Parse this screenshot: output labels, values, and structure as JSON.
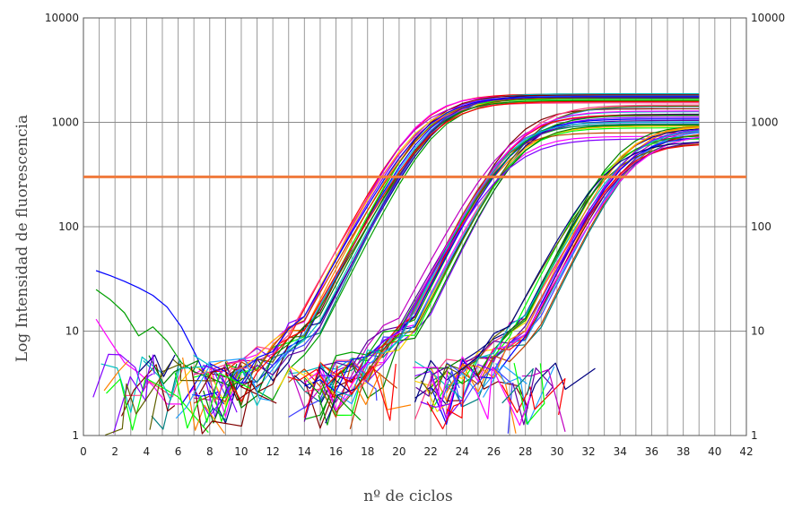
{
  "chart_data": {
    "type": "line",
    "title": "",
    "xlabel": "nº de ciclos",
    "ylabel": "Log Intensidad de fluorescencia",
    "yscale": "log",
    "xlim": [
      0,
      42
    ],
    "ylim": [
      1,
      10000
    ],
    "x_ticks": [
      "0",
      "2",
      "4",
      "6",
      "8",
      "10",
      "12",
      "14",
      "16",
      "18",
      "20",
      "22",
      "24",
      "26",
      "28",
      "30",
      "32",
      "34",
      "36",
      "38",
      "40",
      "42"
    ],
    "y_ticks": [
      "1",
      "10",
      "100",
      "1000",
      "10000"
    ],
    "y_ticks_right": [
      "1",
      "10",
      "100",
      "1000",
      "10000"
    ],
    "grid": true,
    "threshold": 300,
    "threshold_color": "#f07a3c",
    "cycles": [
      1,
      2,
      3,
      4,
      5,
      6,
      7,
      8,
      9,
      10,
      11,
      12,
      13,
      14,
      15,
      16,
      17,
      18,
      19,
      20,
      21,
      22,
      23,
      24,
      25,
      26,
      27,
      28,
      29,
      30,
      31,
      32,
      33,
      34,
      35,
      36,
      37,
      38,
      39,
      40
    ],
    "groups": [
      {
        "id": "early",
        "count": 22,
        "ct": 19.5,
        "plateau_min": 1500,
        "plateau_max": 1900
      },
      {
        "id": "middle",
        "count": 24,
        "ct": 26.0,
        "plateau_min": 650,
        "plateau_max": 1500
      },
      {
        "id": "late",
        "count": 22,
        "ct": 33.5,
        "plateau_min": 620,
        "plateau_max": 950
      }
    ],
    "noise_examples": [
      {
        "values": [
          38,
          34,
          30,
          26,
          22,
          17,
          11,
          6,
          3,
          2
        ]
      },
      {
        "values": [
          25,
          20,
          15,
          9,
          11,
          8,
          5,
          4
        ]
      },
      {
        "values": [
          13,
          8,
          5,
          4,
          3,
          2,
          2,
          3
        ]
      }
    ],
    "series_colors": [
      "#ff0000",
      "#0000ff",
      "#00a000",
      "#ff00ff",
      "#00c0c0",
      "#8000ff",
      "#ff8000",
      "#000080",
      "#008080",
      "#800000",
      "#c000c0",
      "#00ff00",
      "#ffd000",
      "#4040ff",
      "#c04000",
      "#20a0ff",
      "#ff4080",
      "#606000",
      "#008000",
      "#6000a0"
    ]
  }
}
